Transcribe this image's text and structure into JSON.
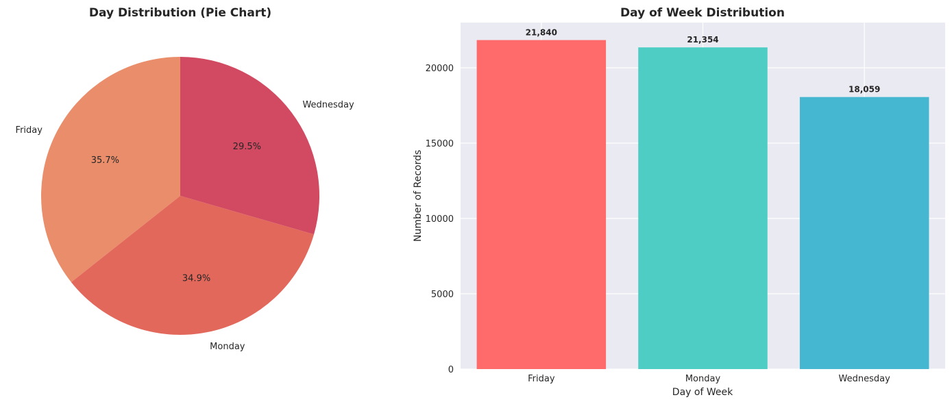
{
  "chart_data": [
    {
      "type": "pie",
      "title": "Day Distribution (Pie Chart)",
      "categories": [
        "Friday",
        "Monday",
        "Wednesday"
      ],
      "values": [
        35.7,
        34.9,
        29.5
      ],
      "value_labels": [
        "35.7%",
        "34.9%",
        "29.5%"
      ],
      "colors": [
        "#e98d6b",
        "#e3685c",
        "#d14a61"
      ],
      "start_angle_deg": 90,
      "direction": "counterclockwise"
    },
    {
      "type": "bar",
      "title": "Day of Week Distribution",
      "categories": [
        "Friday",
        "Monday",
        "Wednesday"
      ],
      "values": [
        21840,
        21354,
        18059
      ],
      "value_labels": [
        "21,840",
        "21,354",
        "18,059"
      ],
      "colors": [
        "#ff6b6b",
        "#4ecdc4",
        "#45b7d1"
      ],
      "xlabel": "Day of Week",
      "ylabel": "Number of Records",
      "ylim": [
        0,
        23000
      ],
      "yticks": [
        0,
        5000,
        10000,
        15000,
        20000
      ],
      "ytick_labels": [
        "0",
        "5000",
        "10000",
        "15000",
        "20000"
      ],
      "grid": true,
      "background": "#eaeaf2"
    }
  ]
}
